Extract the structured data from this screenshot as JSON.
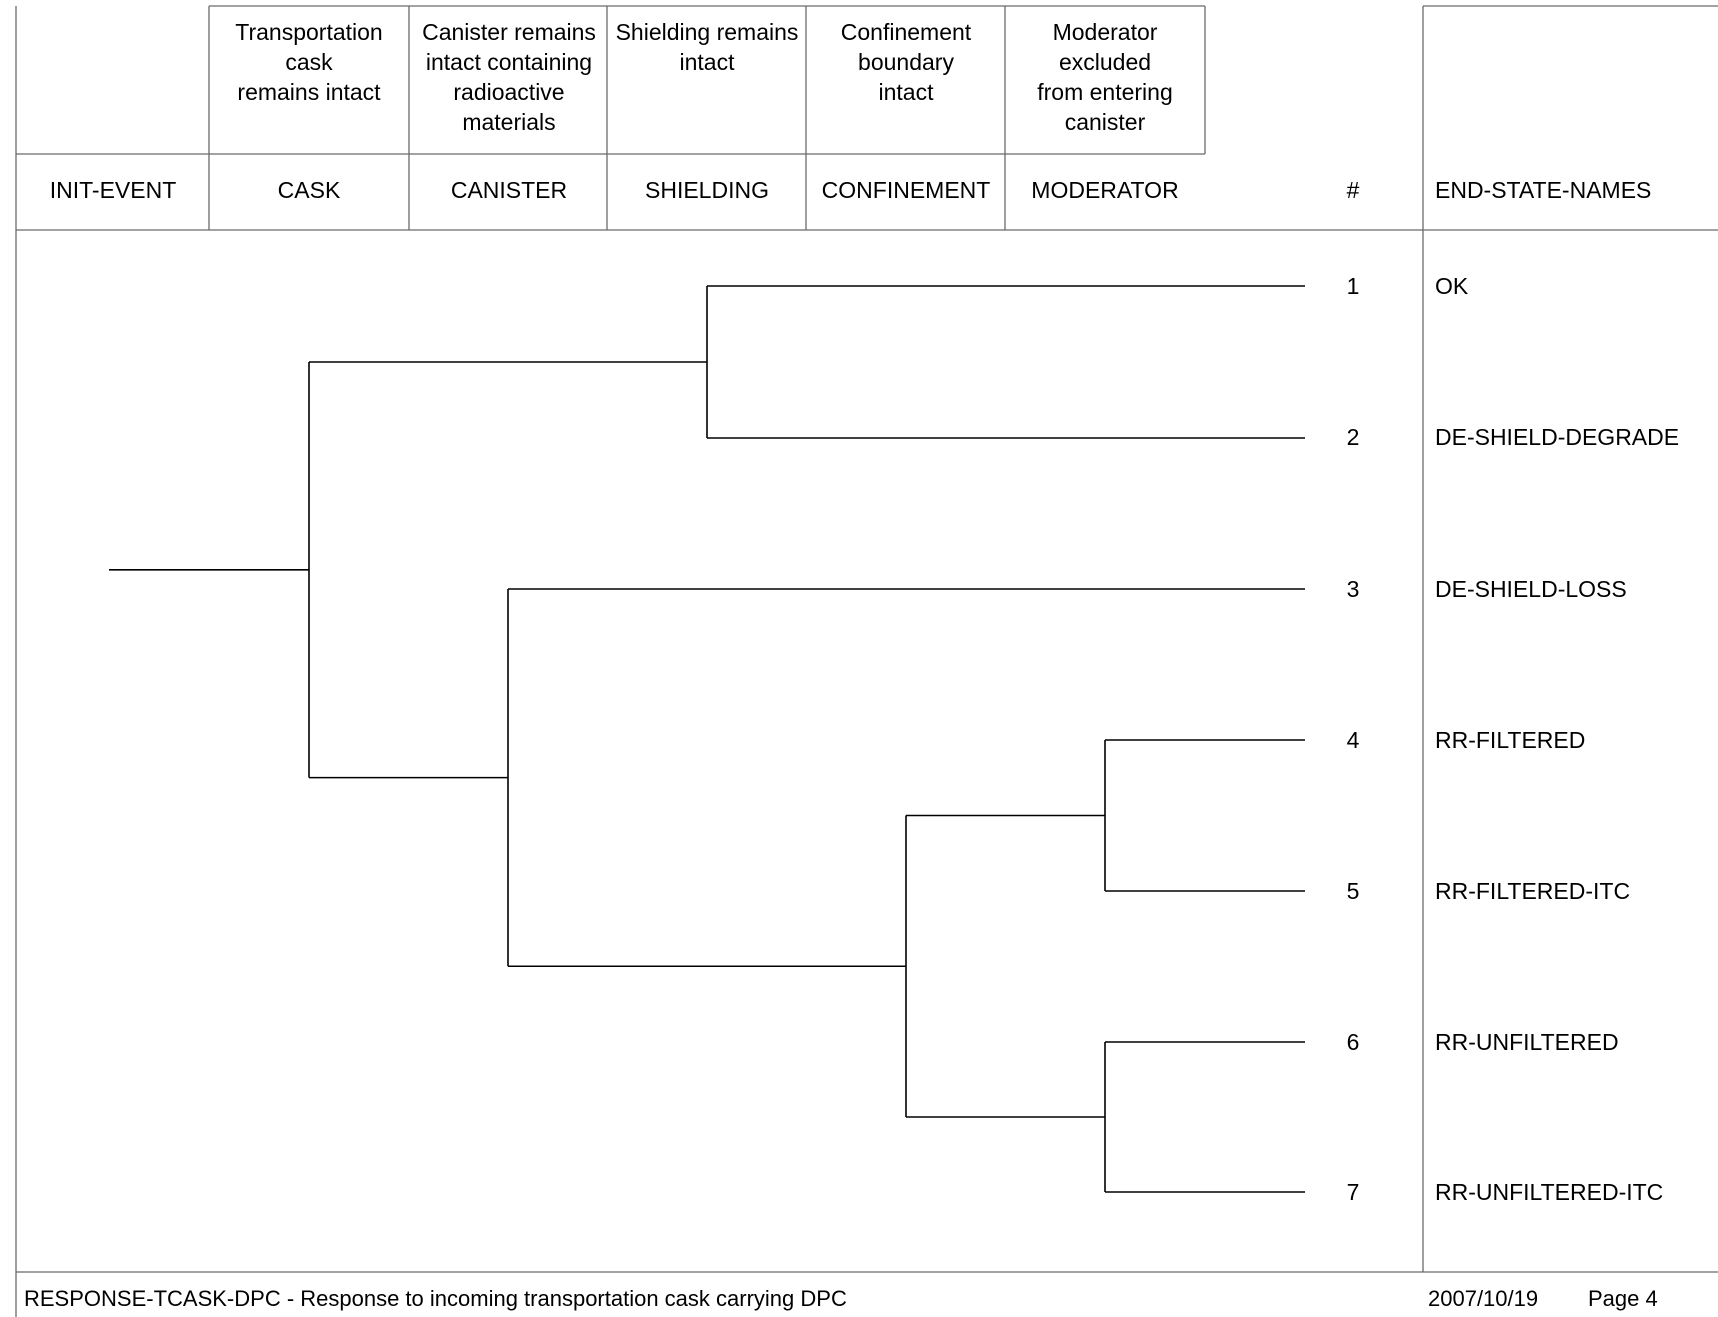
{
  "columns": [
    {
      "code": "INIT-EVENT",
      "description": ""
    },
    {
      "code": "CASK",
      "description": "Transportation\ncask\nremains intact"
    },
    {
      "code": "CANISTER",
      "description": "Canister remains\nintact containing\nradioactive\nmaterials"
    },
    {
      "code": "SHIELDING",
      "description": "Shielding remains\nintact"
    },
    {
      "code": "CONFINEMENT",
      "description": "Confinement\nboundary\nintact"
    },
    {
      "code": "MODERATOR",
      "description": "Moderator\nexcluded\nfrom entering\ncanister"
    }
  ],
  "number_header": "#",
  "end_state_header": "END-STATE-NAMES",
  "end_states": [
    {
      "number": "1",
      "name": "OK"
    },
    {
      "number": "2",
      "name": "DE-SHIELD-DEGRADE"
    },
    {
      "number": "3",
      "name": "DE-SHIELD-LOSS"
    },
    {
      "number": "4",
      "name": "RR-FILTERED"
    },
    {
      "number": "5",
      "name": "RR-FILTERED-ITC"
    },
    {
      "number": "6",
      "name": "RR-UNFILTERED"
    },
    {
      "number": "7",
      "name": "RR-UNFILTERED-ITC"
    }
  ],
  "tree": {
    "column": 0,
    "children": [
      {
        "column": 1,
        "children": [
          {
            "column": 3,
            "children": [
              {
                "end": 0
              },
              {
                "end": 1
              }
            ]
          },
          {
            "column": 2,
            "children": [
              {
                "end": 2
              },
              {
                "column": 4,
                "children": [
                  {
                    "column": 5,
                    "children": [
                      {
                        "end": 3
                      },
                      {
                        "end": 4
                      }
                    ]
                  },
                  {
                    "column": 5,
                    "children": [
                      {
                        "end": 5
                      },
                      {
                        "end": 6
                      }
                    ]
                  }
                ]
              }
            ]
          }
        ]
      }
    ]
  },
  "footer": {
    "title": "RESPONSE-TCASK-DPC -  Response to incoming transportation cask carrying DPC",
    "date": "2007/10/19",
    "page": "Page 4"
  },
  "colors": {
    "line": "#000000",
    "grid": "#6b6b6b",
    "background": "#ffffff"
  }
}
